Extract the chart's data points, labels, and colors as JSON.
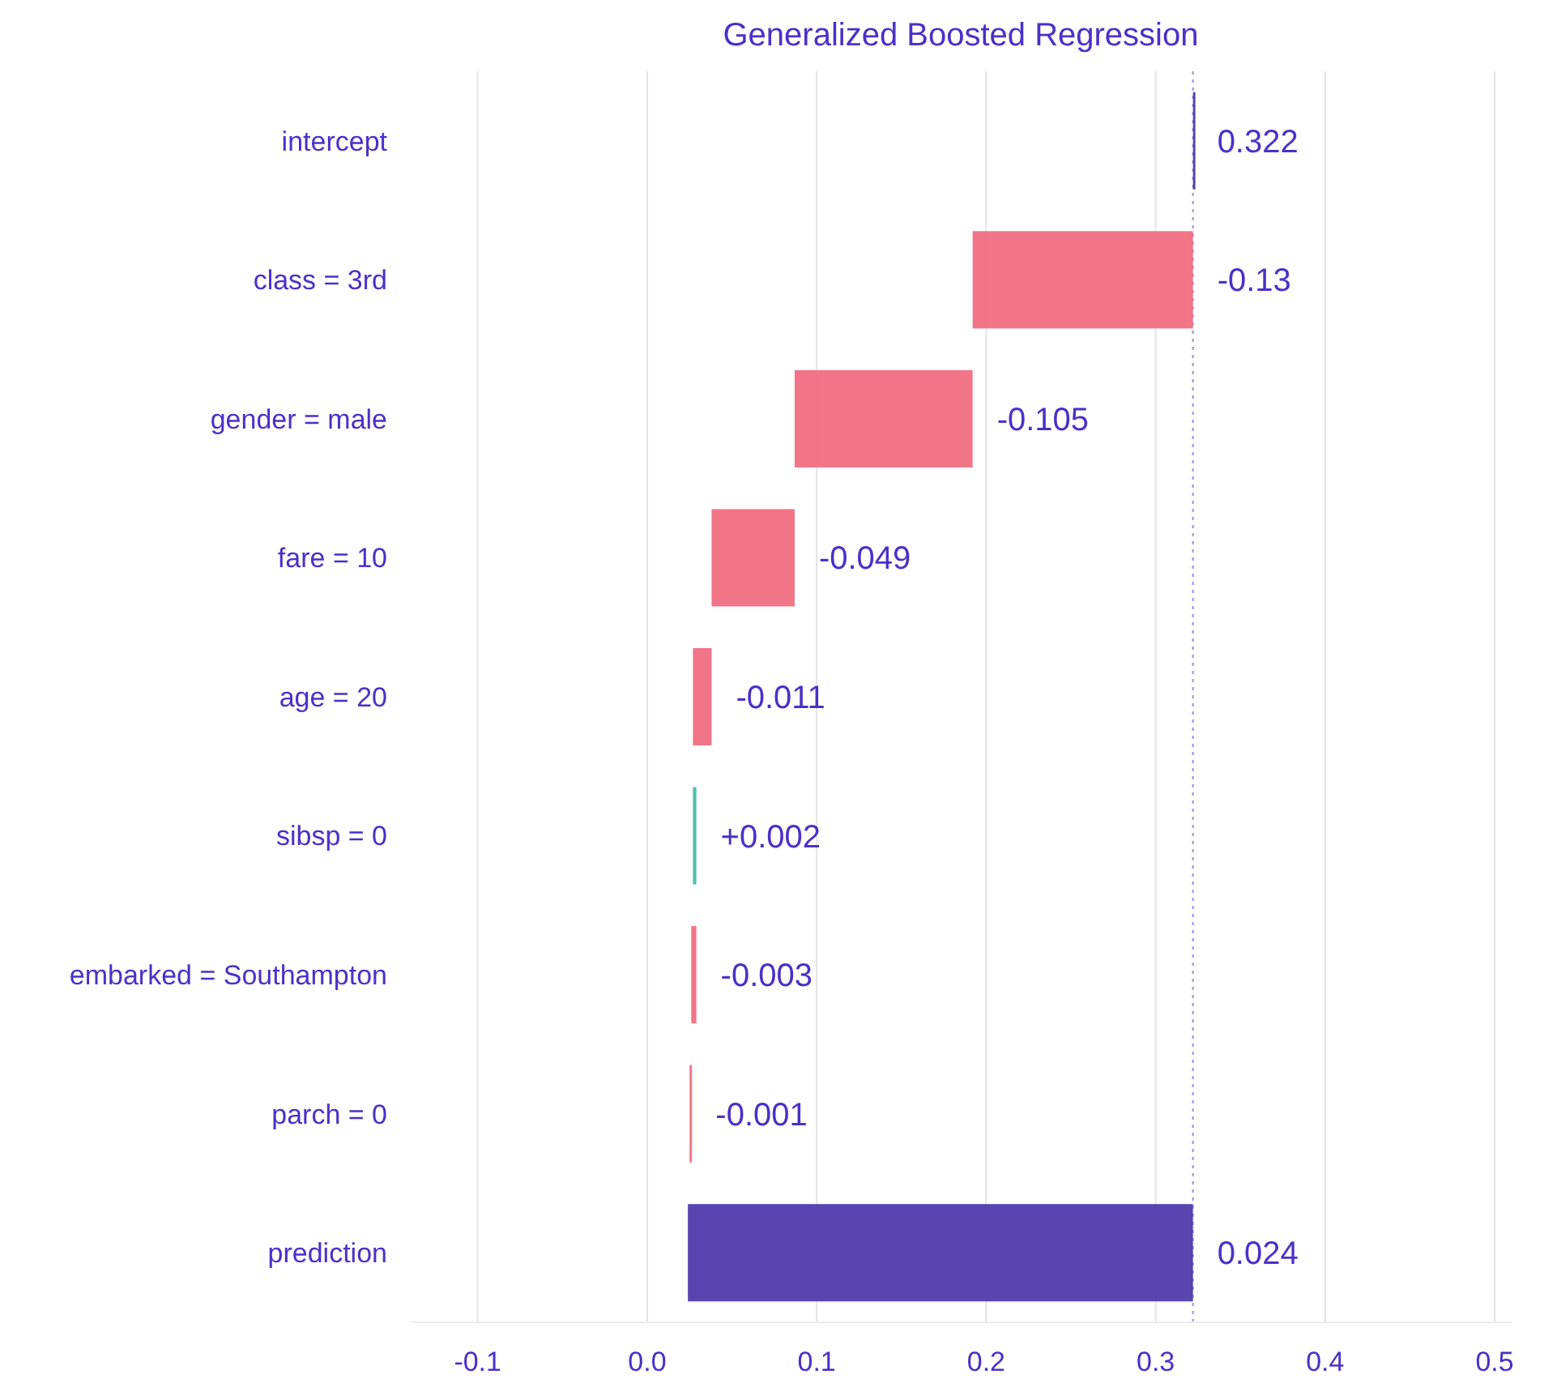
{
  "chart_data": {
    "type": "bar",
    "orientation": "horizontal",
    "title": "Generalized Boosted Regression",
    "categories": [
      "intercept",
      "class = 3rd",
      "gender = male",
      "fare = 10",
      "age = 20",
      "sibsp = 0",
      "embarked = Southampton",
      "parch = 0",
      "prediction"
    ],
    "base": [
      0.322,
      0.322,
      0.192,
      0.087,
      0.038,
      0.027,
      0.029,
      0.026,
      0.024
    ],
    "values": [
      0,
      -0.13,
      -0.105,
      -0.049,
      -0.011,
      0.002,
      -0.003,
      -0.001,
      0.298
    ],
    "colors": [
      "#4b35a8",
      "#f0697e",
      "#f0697e",
      "#f0697e",
      "#f0697e",
      "#3cbfa0",
      "#f0697e",
      "#f0697e",
      "#4b35a8"
    ],
    "value_labels": [
      "0.322",
      "-0.13",
      "-0.105",
      "-0.049",
      "-0.011",
      "+0.002",
      "-0.003",
      "-0.001",
      null
    ],
    "annotations": [
      "0.024"
    ],
    "xlim": [
      -0.14,
      0.51
    ],
    "xticks": [
      -0.1,
      {
        "value": 0,
        "label": "0.0"
      },
      0.1,
      0.2,
      0.3,
      0.4,
      0.5
    ],
    "ref_lines": [
      {
        "axis": "x",
        "value": 0.322,
        "color": "#9a8ee0",
        "line_style": "dotted"
      }
    ],
    "grid": "x"
  }
}
